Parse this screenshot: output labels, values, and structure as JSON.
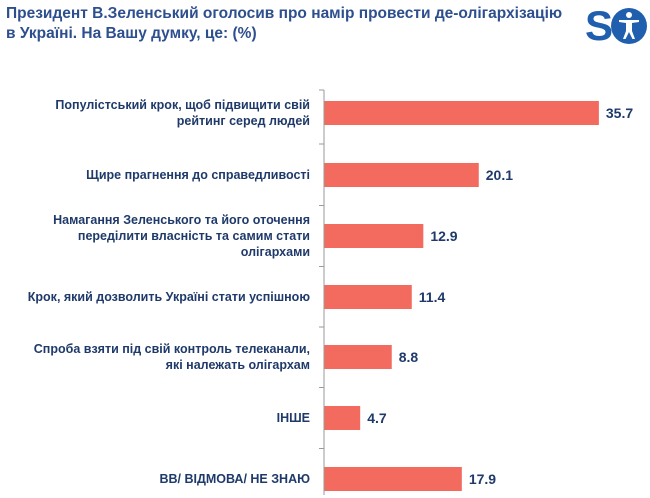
{
  "title": "Президент В.Зеленський оголосив про намір провести де-олігархізацію в Україні. На Вашу думку, це: (%)",
  "logo": {
    "text": "SO",
    "icon": "person-silhouette-icon",
    "color": "#1f5fae"
  },
  "colors": {
    "bar": "#f26b5e",
    "axis": "#9a9a9a",
    "text": "#1f3a6a",
    "title": "#2d4f8e"
  },
  "chart_data": {
    "type": "bar",
    "orientation": "horizontal",
    "categories": [
      [
        "Популістський крок, щоб підвищити свій",
        "рейтинг серед людей"
      ],
      [
        "Щире прагнення до справедливості"
      ],
      [
        "Намагання Зеленського та його оточення",
        "переділити власність та самим стати",
        "олігархами"
      ],
      [
        "Крок, який дозволить Україні стати успішною"
      ],
      [
        "Спроба взяти під свій контроль телеканали,",
        "які належать олігархам"
      ],
      [
        "ІНШЕ"
      ],
      [
        "ВВ/ ВІДМОВА/ НЕ ЗНАЮ"
      ]
    ],
    "values": [
      35.7,
      20.1,
      12.9,
      11.4,
      8.8,
      4.7,
      17.9
    ],
    "value_labels": [
      "35.7",
      "20.1",
      "12.9",
      "11.4",
      "8.8",
      "4.7",
      "17.9"
    ],
    "xlim": [
      0,
      40
    ],
    "grid": false,
    "legend": "none"
  }
}
